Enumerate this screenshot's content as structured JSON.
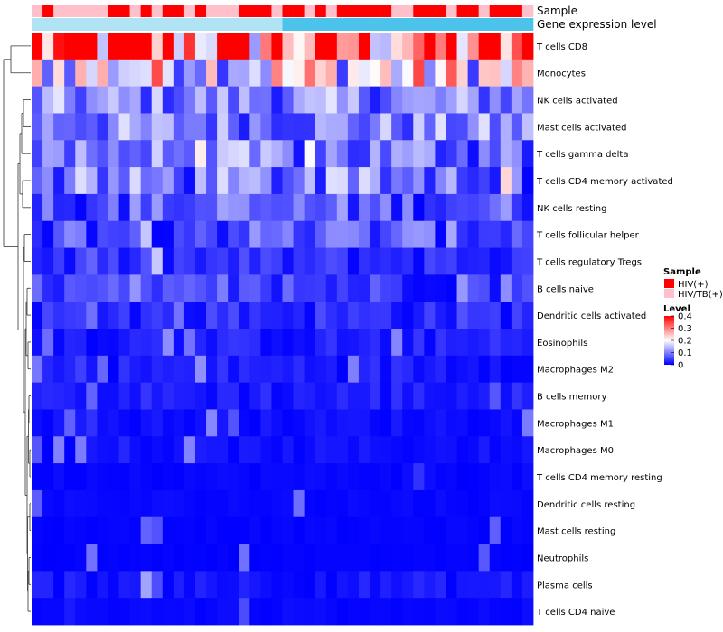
{
  "chart_data": {
    "type": "heatmap",
    "title": "",
    "annotations": {
      "sample_label": "Sample",
      "expression_label": "Gene expression level"
    },
    "rows": [
      "T cells CD8",
      "Monocytes",
      "NK cells activated",
      "Mast cells activated",
      "T cells gamma delta",
      "T cells CD4 memory activated",
      "NK cells resting",
      "T cells follicular helper",
      "T cells regulatory  Tregs",
      "B cells naive",
      "Dendritic cells activated",
      "Eosinophils",
      "Macrophages M2",
      "B cells memory",
      "Macrophages M1",
      "Macrophages M0",
      "T cells CD4 memory resting",
      "Dendritic cells resting",
      "Mast cells resting",
      "Neutrophils",
      "Plasma cells",
      "T cells CD4 naive"
    ],
    "row_means": [
      0.32,
      0.2,
      0.1,
      0.1,
      0.08,
      0.08,
      0.06,
      0.06,
      0.03,
      0.04,
      0.03,
      0.02,
      0.02,
      0.02,
      0.01,
      0.01,
      0.005,
      0.005,
      0.003,
      0.002,
      0.015,
      0.005
    ],
    "n_samples": 46,
    "sample_groups": [
      "HIV/TB(+)",
      "HIV(+)",
      "HIV/TB(+)",
      "HIV/TB(+)",
      "HIV/TB(+)",
      "HIV/TB(+)",
      "HIV/TB(+)",
      "HIV(+)",
      "HIV(+)",
      "HIV/TB(+)",
      "HIV(+)",
      "HIV/TB(+)",
      "HIV(+)",
      "HIV(+)",
      "HIV/TB(+)",
      "HIV(+)",
      "HIV/TB(+)",
      "HIV/TB(+)",
      "HIV/TB(+)",
      "HIV(+)",
      "HIV(+)",
      "HIV(+)",
      "HIV/TB(+)",
      "HIV(+)",
      "HIV(+)",
      "HIV/TB(+)",
      "HIV(+)",
      "HIV/TB(+)",
      "HIV(+)",
      "HIV(+)",
      "HIV(+)",
      "HIV(+)",
      "HIV(+)",
      "HIV/TB(+)",
      "HIV/TB(+)",
      "HIV(+)",
      "HIV(+)",
      "HIV(+)",
      "HIV/TB(+)",
      "HIV(+)",
      "HIV(+)",
      "HIV/TB(+)",
      "HIV(+)",
      "HIV(+)",
      "HIV(+)",
      "HIV/TB(+)"
    ],
    "expression_colors": [
      "#b0e4f5",
      "#4cc3ea"
    ],
    "legend": {
      "sample_title": "Sample",
      "sample_entries": [
        {
          "label": "HIV(+)",
          "color": "#ff0000"
        },
        {
          "label": "HIV/TB(+)",
          "color": "#ffc0cb"
        }
      ],
      "level_title": "Level",
      "level_ticks": [
        "0.4",
        "0.3",
        "0.2",
        "0.1",
        "0"
      ],
      "level_values": [
        0.4,
        0.3,
        0.2,
        0.1,
        0
      ],
      "color_scale": [
        "#0000ff",
        "#ffffff",
        "#ff0000"
      ],
      "scale_range": [
        0,
        0.4
      ]
    }
  }
}
